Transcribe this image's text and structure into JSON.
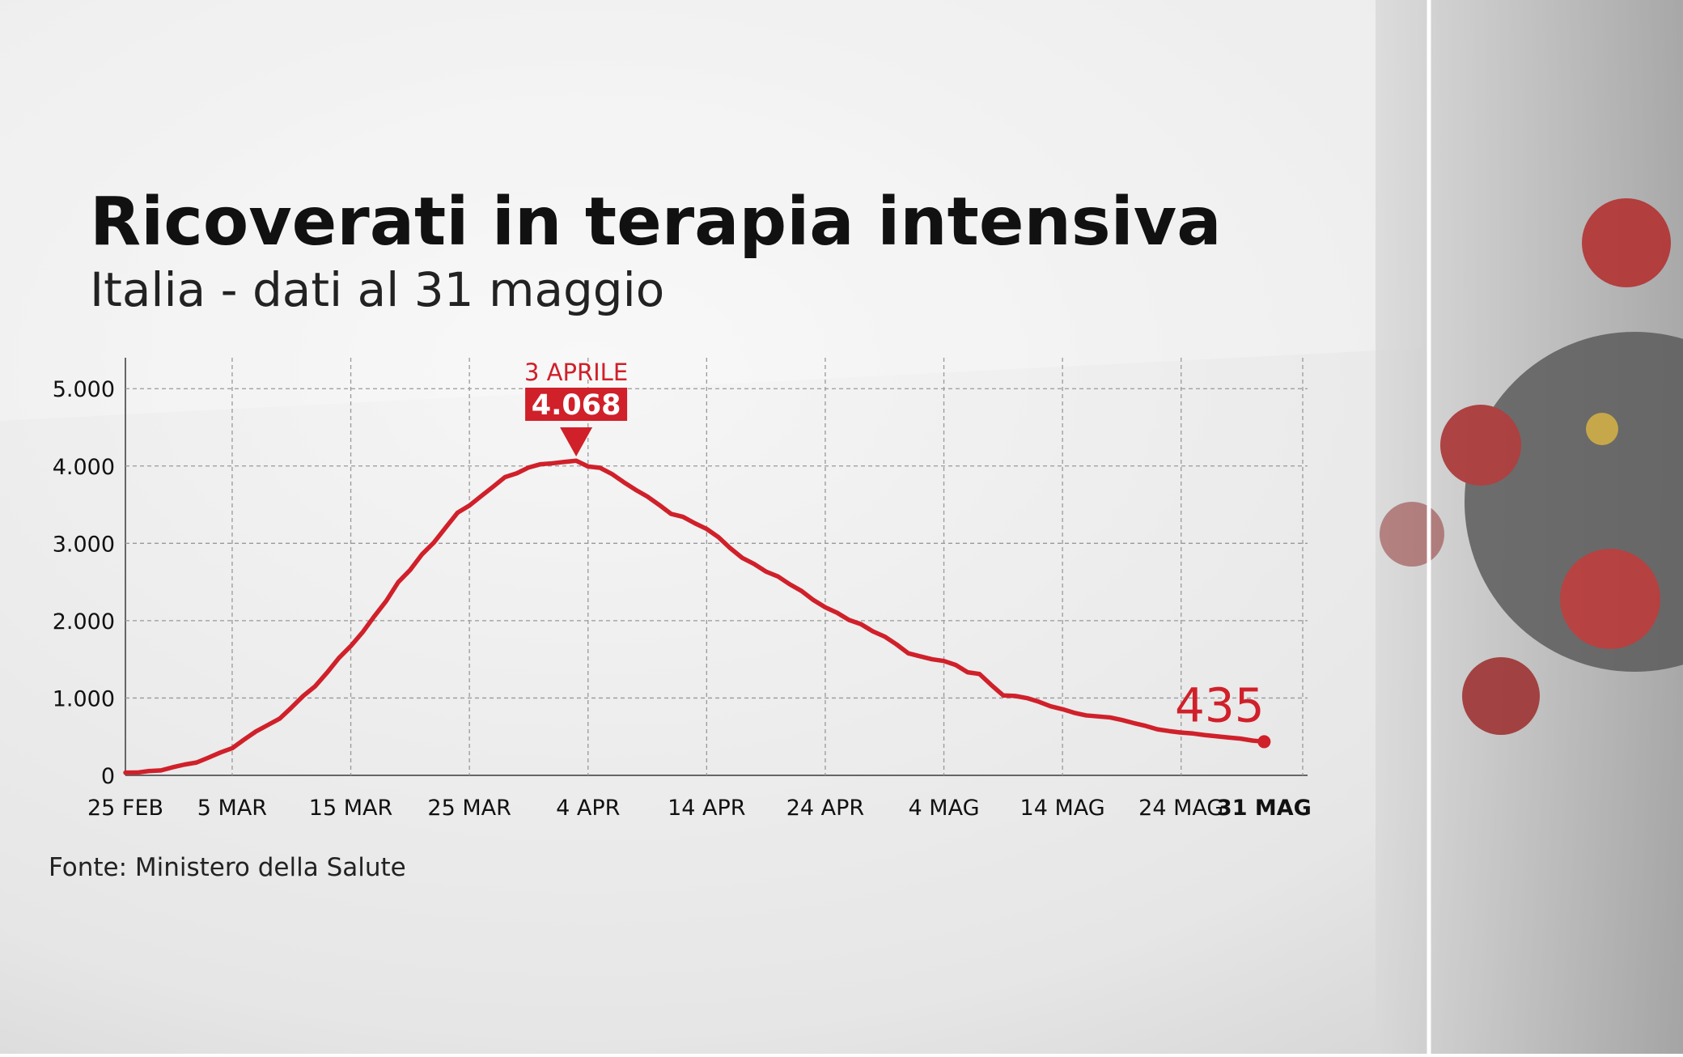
{
  "chart_data": {
    "type": "line",
    "title": "Ricoverati in terapia intensiva",
    "subtitle": "Italia - dati al 31 maggio",
    "source": "Fonte: Ministero della Salute",
    "peak_date_label": "3 APRILE",
    "categories": [
      "25 FEB",
      null,
      null,
      null,
      null,
      null,
      null,
      null,
      null,
      "5 MAR",
      null,
      null,
      null,
      null,
      null,
      null,
      null,
      null,
      null,
      "15 MAR",
      null,
      null,
      null,
      null,
      null,
      null,
      null,
      null,
      null,
      "25 MAR",
      null,
      null,
      null,
      null,
      null,
      null,
      null,
      null,
      null,
      "4 APR",
      null,
      null,
      null,
      null,
      null,
      null,
      null,
      null,
      null,
      "14 APR",
      null,
      null,
      null,
      null,
      null,
      null,
      null,
      null,
      null,
      "24 APR",
      null,
      null,
      null,
      null,
      null,
      null,
      null,
      null,
      null,
      "4 MAG",
      null,
      null,
      null,
      null,
      null,
      null,
      null,
      null,
      null,
      "14 MAG",
      null,
      null,
      null,
      null,
      null,
      null,
      null,
      null,
      null,
      "24 MAG",
      null,
      null,
      null,
      null,
      null,
      null,
      "31 MAG"
    ],
    "series": [
      {
        "name": "Ricoverati in terapia intensiva",
        "color": "#d0202a",
        "values": [
          35,
          36,
          56,
          64,
          105,
          140,
          166,
          229,
          295,
          351,
          462,
          567,
          650,
          733,
          877,
          1028,
          1153,
          1328,
          1518,
          1672,
          1851,
          2060,
          2257,
          2498,
          2655,
          2857,
          3009,
          3204,
          3396,
          3489,
          3612,
          3732,
          3856,
          3906,
          3981,
          4023,
          4035,
          4053,
          4068,
          3994,
          3977,
          3898,
          3792,
          3693,
          3605,
          3497,
          3381,
          3343,
          3260,
          3186,
          3079,
          2936,
          2812,
          2733,
          2635,
          2573,
          2471,
          2384,
          2267,
          2173,
          2102,
          2009,
          1956,
          1863,
          1795,
          1694,
          1578,
          1539,
          1501,
          1479,
          1427,
          1333,
          1311,
          1168,
          1034,
          1027,
          999,
          952,
          893,
          855,
          808,
          775,
          762,
          749,
          716,
          676,
          640,
          595,
          572,
          553,
          541,
          521,
          505,
          489,
          475,
          450,
          435
        ],
        "value_labels": [
          null,
          null,
          null,
          null,
          null,
          null,
          null,
          null,
          null,
          null,
          null,
          null,
          null,
          null,
          null,
          null,
          null,
          null,
          null,
          null,
          null,
          null,
          null,
          null,
          null,
          null,
          null,
          null,
          null,
          null,
          null,
          null,
          null,
          null,
          null,
          null,
          null,
          null,
          "4.068",
          null,
          null,
          null,
          null,
          null,
          null,
          null,
          null,
          null,
          null,
          null,
          null,
          null,
          null,
          null,
          null,
          null,
          null,
          null,
          null,
          null,
          null,
          null,
          null,
          null,
          null,
          null,
          null,
          null,
          null,
          null,
          null,
          null,
          null,
          null,
          null,
          null,
          null,
          null,
          null,
          null,
          null,
          null,
          null,
          null,
          null,
          null,
          null,
          null,
          null,
          null,
          null,
          null,
          null,
          null,
          null,
          null,
          "435"
        ]
      }
    ],
    "ylim": [
      0,
      5400
    ],
    "yticks": [
      0,
      {
        "value": 1000,
        "label": "1.000"
      },
      {
        "value": 2000,
        "label": "2.000"
      },
      {
        "value": 3000,
        "label": "3.000"
      },
      {
        "value": 4000,
        "label": "4.000"
      },
      {
        "value": 5000,
        "label": "5.000"
      }
    ],
    "grid": true
  }
}
